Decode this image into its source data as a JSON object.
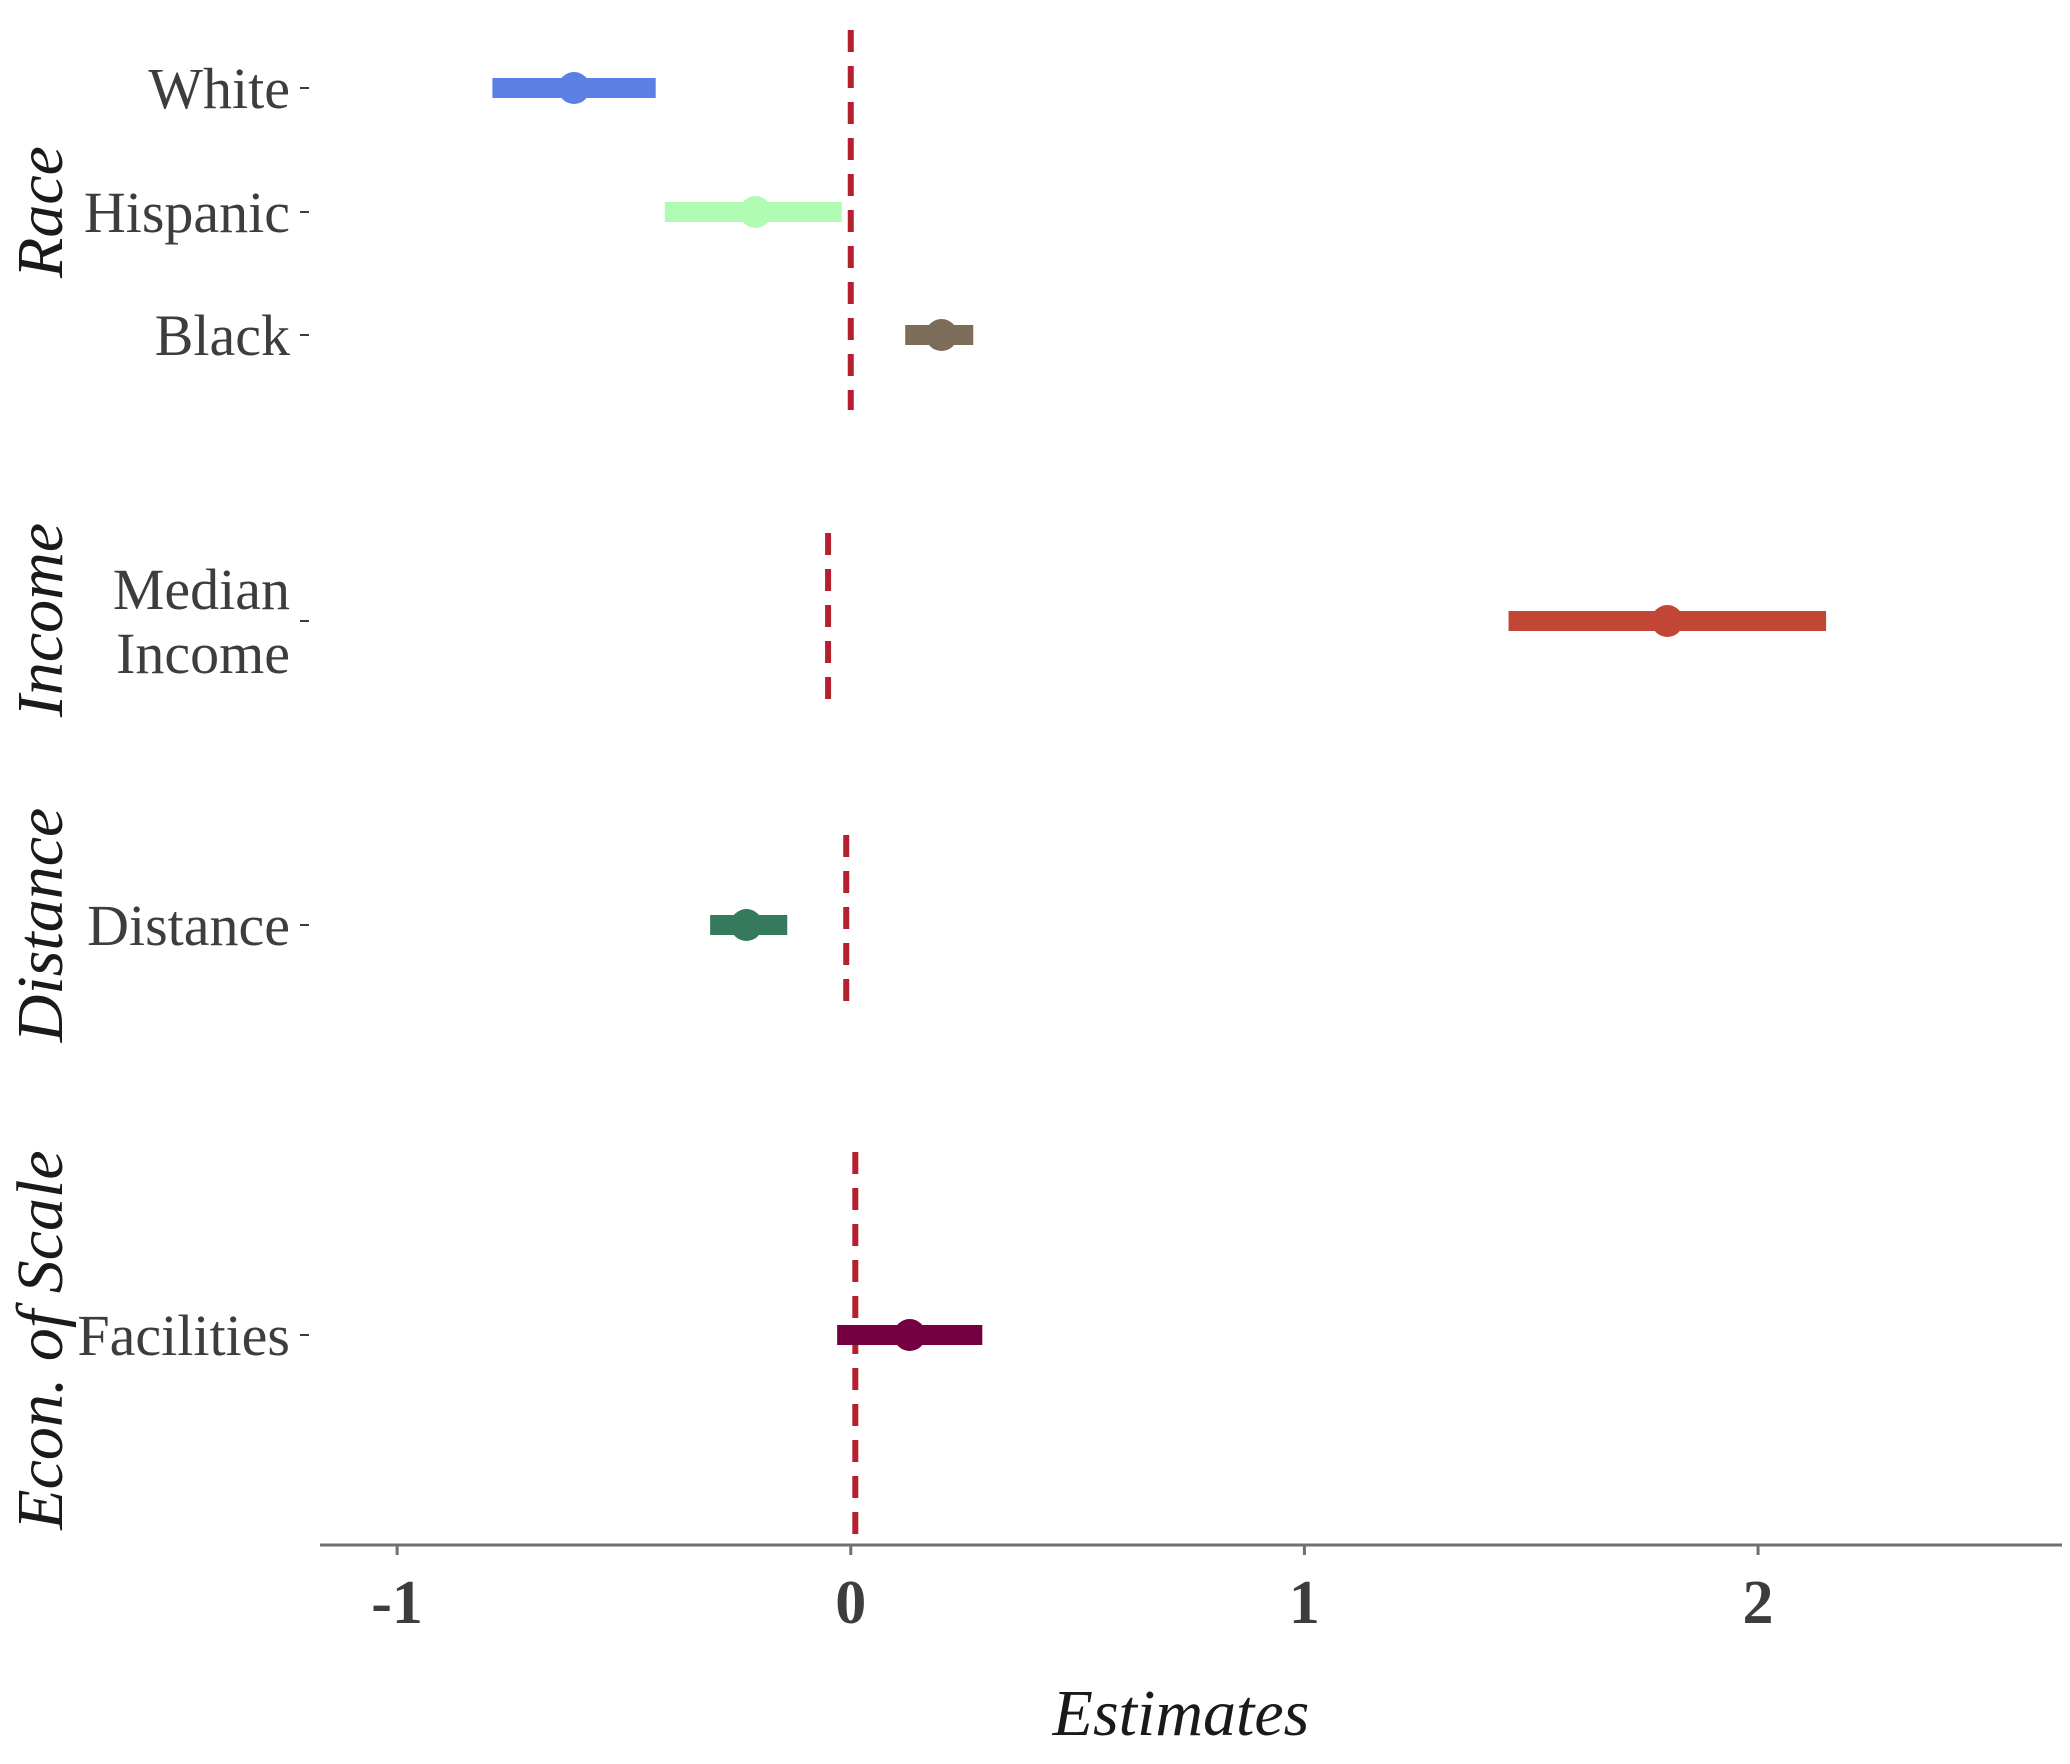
{
  "chart_data": {
    "type": "forest",
    "xlabel": "Estimates",
    "xticks": [
      -1,
      0,
      1,
      2
    ],
    "xlim": [
      -1.17,
      2.67
    ],
    "reference_line": 0,
    "panels": [
      {
        "label": "Race",
        "zero_line_x": 0,
        "rows": [
          {
            "label": [
              "White"
            ],
            "estimate": -0.61,
            "low": -0.79,
            "high": -0.43,
            "color": "#5a80e5"
          },
          {
            "label": [
              "Hispanic"
            ],
            "estimate": -0.21,
            "low": -0.41,
            "high": -0.02,
            "color": "#b1fcb3"
          },
          {
            "label": [
              "Black"
            ],
            "estimate": 0.2,
            "low": 0.12,
            "high": 0.27,
            "color": "#7c6c5a"
          }
        ]
      },
      {
        "label": "Income",
        "zero_line_x": -0.05,
        "rows": [
          {
            "label": [
              "Median",
              "Income"
            ],
            "estimate": 1.8,
            "low": 1.45,
            "high": 2.15,
            "color": "#c24636"
          }
        ]
      },
      {
        "label": "Distance",
        "zero_line_x": -0.01,
        "rows": [
          {
            "label": [
              "Distance"
            ],
            "estimate": -0.23,
            "low": -0.31,
            "high": -0.14,
            "color": "#357a5c"
          }
        ]
      },
      {
        "label": "Econ. of Scale",
        "zero_line_x": 0.01,
        "rows": [
          {
            "label": [
              "Facilities"
            ],
            "estimate": 0.13,
            "low": -0.03,
            "high": 0.29,
            "color": "#740041"
          }
        ]
      }
    ]
  },
  "colors": {
    "reference_line": "#b5202e",
    "axis": "#6b7070",
    "text": "#3d3d3d"
  }
}
